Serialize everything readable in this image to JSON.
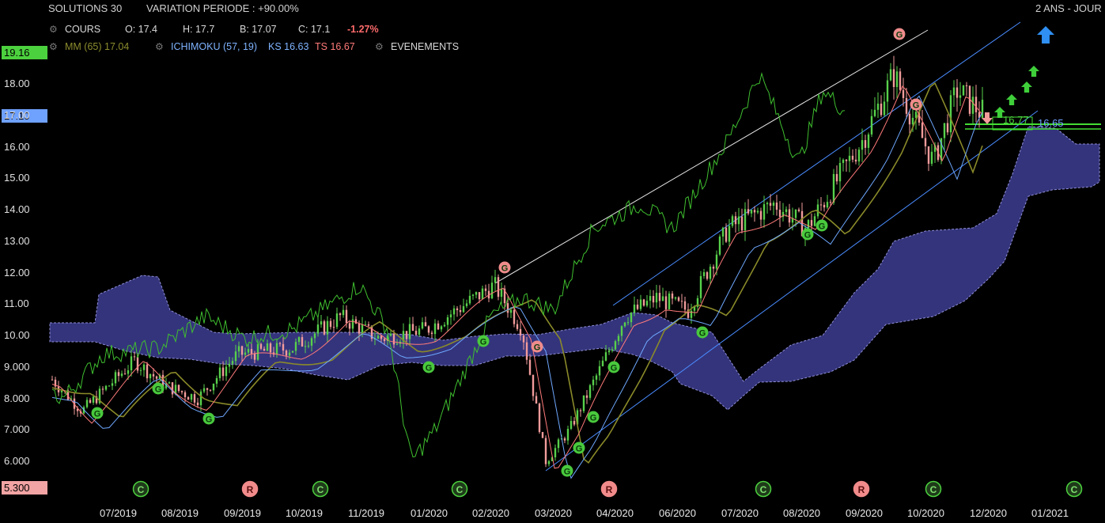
{
  "header": {
    "instrument": "SOLUTIONS 30",
    "variation": "VARIATION PERIODE : +90.00%",
    "period": "2 ANS - JOUR"
  },
  "legend": {
    "cours_label": "COURS",
    "open": "O: 17.4",
    "high": "H: 17.7",
    "low": "B: 17.07",
    "close": "C: 17.1",
    "change": "-1.27%",
    "mm": "MM (65) 17.04",
    "ichimoku": "ICHIMOKU (57, 19)",
    "ks": "KS 16.63",
    "ts": "TS 16.67",
    "events": "EVENEMENTS"
  },
  "flags": {
    "high": "19.16",
    "last": "17.10",
    "low": "5.300",
    "price_a": "16.77",
    "price_b": "16.65"
  },
  "colors": {
    "bg": "#000000",
    "up": "#57d04b",
    "down": "#f29b9b",
    "mm": "#8a8a2a",
    "ks": "#6ea8ff",
    "ts": "#ff7a7a",
    "chikou": "#3fbf2f",
    "cloud": "#3a3a8a",
    "flag_high": "#4cd13e",
    "flag_last": "#6fa1ff",
    "flag_low": "#f2a3a3",
    "line_green": "#44dd33"
  },
  "chart_data": {
    "type": "candlestick",
    "title": "SOLUTIONS 30",
    "y_axis_ticks": [
      "18.00",
      "17.00",
      "16.00",
      "15.00",
      "14.00",
      "13.00",
      "12.00",
      "11.00",
      "10.00",
      "9.000",
      "8.000",
      "7.000",
      "6.000"
    ],
    "x_axis_ticks": [
      "07/2019",
      "08/2019",
      "09/2019",
      "10/2019",
      "11/2019",
      "01/2020",
      "02/2020",
      "03/2020",
      "04/2020",
      "06/2020",
      "07/2020",
      "08/2020",
      "09/2020",
      "10/2020",
      "12/2020",
      "01/2021"
    ],
    "ylim": [
      5.3,
      19.16
    ],
    "events": [
      {
        "type": "C",
        "date": "06/2019"
      },
      {
        "type": "R",
        "date": "09/2019"
      },
      {
        "type": "C",
        "date": "10/2019"
      },
      {
        "type": "C",
        "date": "01/2020"
      },
      {
        "type": "R",
        "date": "04/2020"
      },
      {
        "type": "C",
        "date": "07/2020"
      },
      {
        "type": "R",
        "date": "09/2020"
      },
      {
        "type": "C",
        "date": "10/2020"
      },
      {
        "type": "C",
        "date": "01/2021"
      }
    ],
    "price_path_approx": [
      [
        "06/2019",
        8.6
      ],
      [
        "07/2019",
        7.6
      ],
      [
        "07/2019",
        9.2
      ],
      [
        "08/2019",
        8.4
      ],
      [
        "08/2019",
        8.0
      ],
      [
        "09/2019",
        9.4
      ],
      [
        "10/2019",
        9.6
      ],
      [
        "11/2019",
        10.6
      ],
      [
        "12/2019",
        9.9
      ],
      [
        "01/2020",
        10.2
      ],
      [
        "02/2020",
        11.6
      ],
      [
        "02/2020",
        10.2
      ],
      [
        "03/2020",
        6.0
      ],
      [
        "03/2020",
        7.0
      ],
      [
        "04/2020",
        9.0
      ],
      [
        "04/2020",
        10.6
      ],
      [
        "05/2020",
        11.2
      ],
      [
        "06/2020",
        10.8
      ],
      [
        "07/2020",
        13.4
      ],
      [
        "08/2020",
        14.2
      ],
      [
        "08/2020",
        13.4
      ],
      [
        "09/2020",
        16.2
      ],
      [
        "09/2020",
        18.3
      ],
      [
        "10/2020",
        16.6
      ],
      [
        "10/2020",
        15.5
      ],
      [
        "11/2020",
        17.8
      ],
      [
        "12/2020",
        17.1
      ]
    ]
  }
}
